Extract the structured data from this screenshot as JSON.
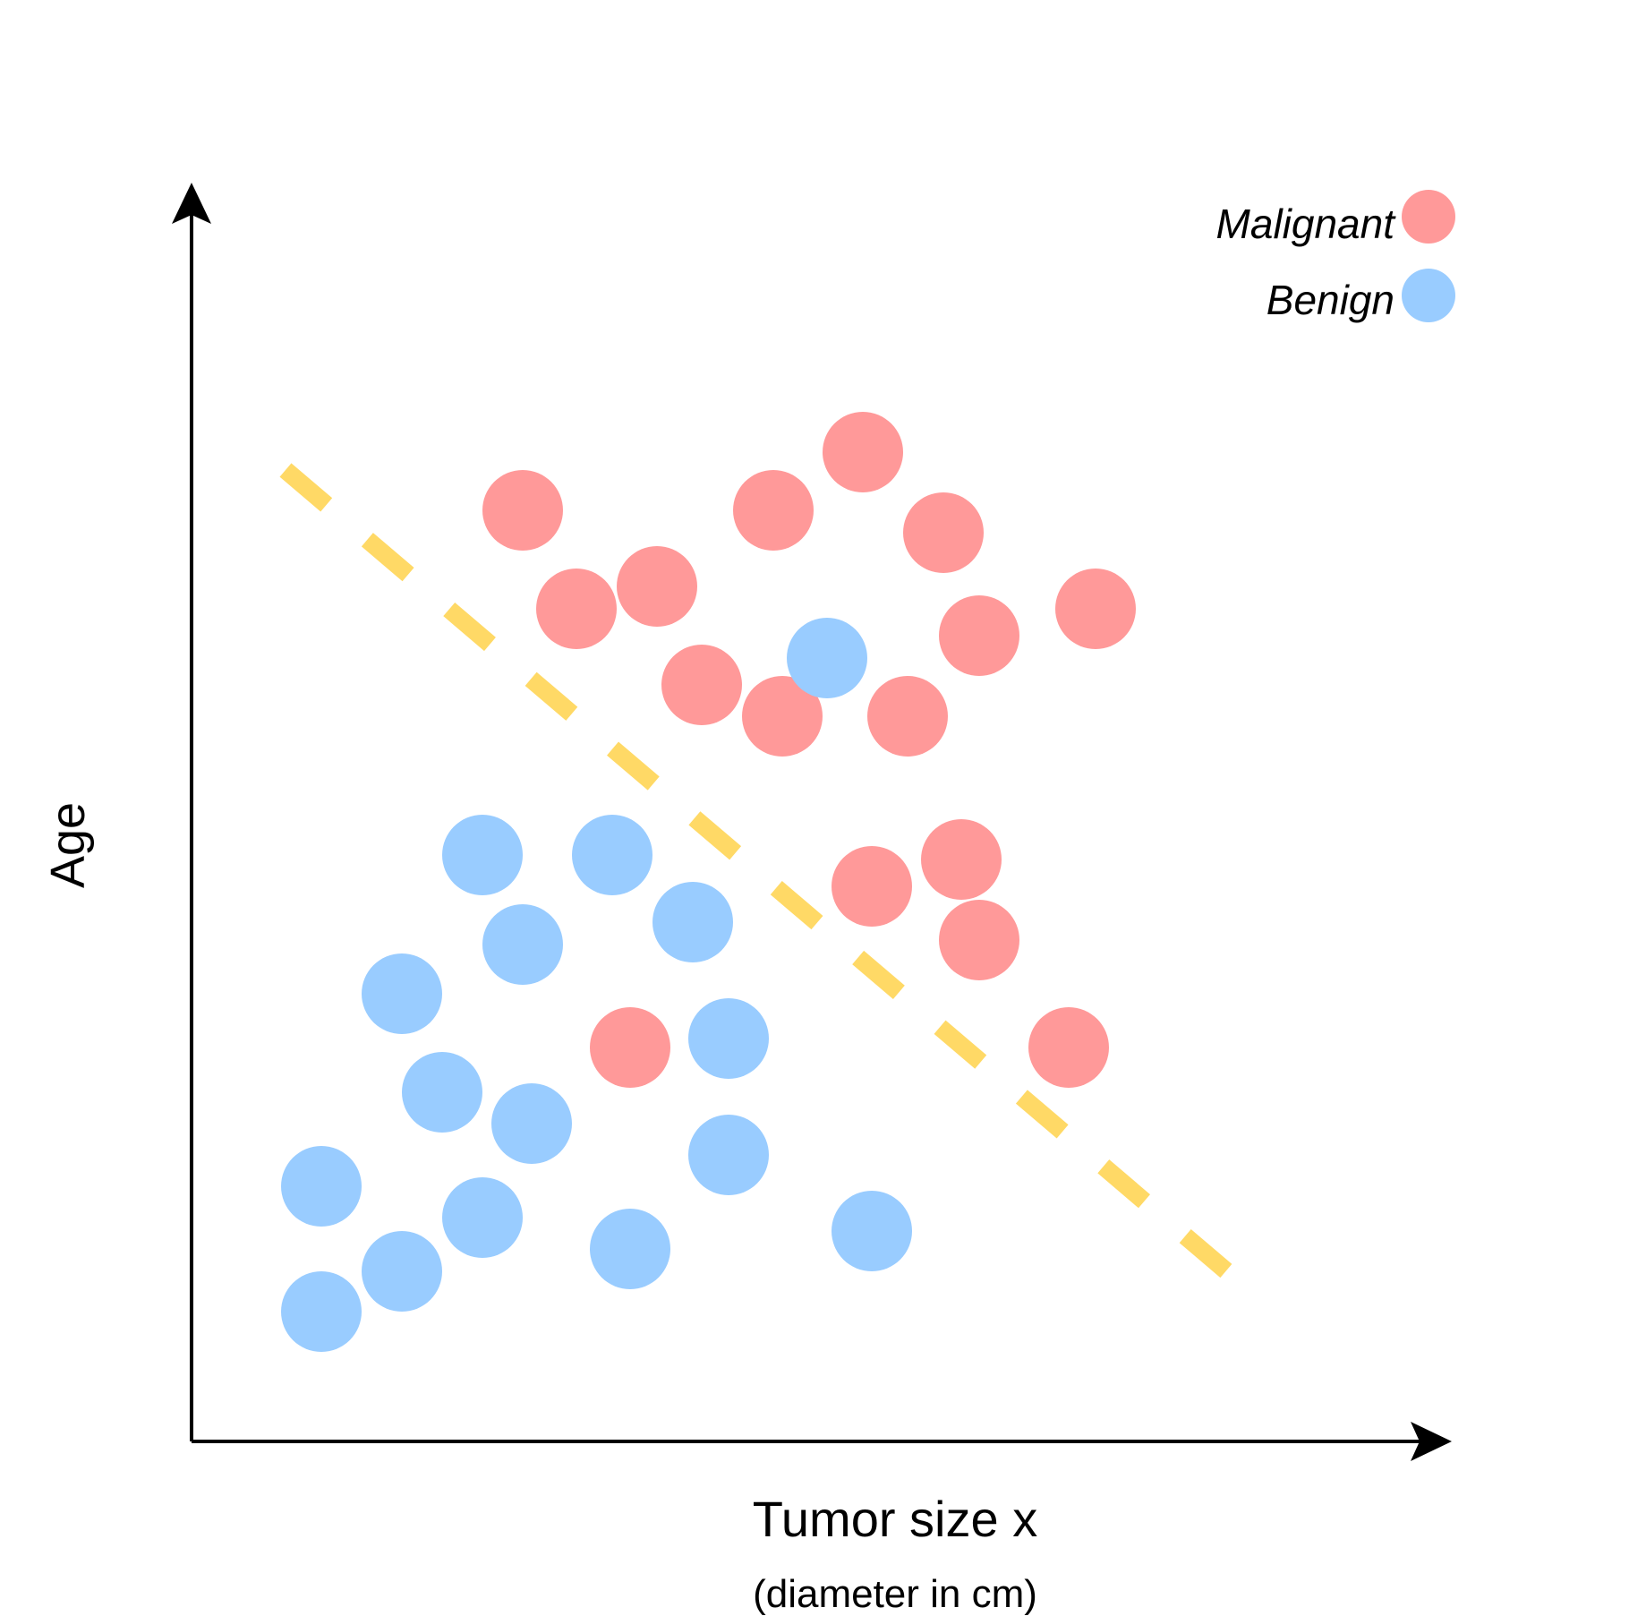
{
  "chart_data": {
    "type": "scatter",
    "xlabel": "Tumor size x",
    "xlabel_sub": "(diameter in cm)",
    "ylabel": "Age",
    "xlim": [
      0,
      14
    ],
    "ylim": [
      0,
      14
    ],
    "grid": false,
    "legend_position": "top-right",
    "series": [
      {
        "name": "Malignant",
        "color": "#ff9999",
        "points": [
          [
            3.7,
            10.4
          ],
          [
            4.3,
            9.3
          ],
          [
            5.2,
            9.55
          ],
          [
            6.5,
            10.4
          ],
          [
            7.5,
            11.05
          ],
          [
            8.4,
            10.15
          ],
          [
            8.8,
            9.0
          ],
          [
            10.1,
            9.3
          ],
          [
            5.7,
            8.45
          ],
          [
            6.6,
            8.1
          ],
          [
            8.0,
            8.1
          ],
          [
            7.6,
            6.2
          ],
          [
            8.6,
            6.5
          ],
          [
            8.8,
            5.6
          ],
          [
            4.9,
            4.4
          ],
          [
            9.8,
            4.4
          ]
        ]
      },
      {
        "name": "Benign",
        "color": "#99ccff",
        "points": [
          [
            7.1,
            8.75
          ],
          [
            3.25,
            6.55
          ],
          [
            4.7,
            6.55
          ],
          [
            3.7,
            5.55
          ],
          [
            5.6,
            5.8
          ],
          [
            2.35,
            5.0
          ],
          [
            6.0,
            4.5
          ],
          [
            2.8,
            3.9
          ],
          [
            3.8,
            3.55
          ],
          [
            6.0,
            3.2
          ],
          [
            1.45,
            2.85
          ],
          [
            3.25,
            2.5
          ],
          [
            2.35,
            1.9
          ],
          [
            4.9,
            2.15
          ],
          [
            7.6,
            2.35
          ],
          [
            1.45,
            1.45
          ]
        ]
      }
    ],
    "decision_boundary": {
      "style": "dashed",
      "color": "#ffd966",
      "from": [
        1.05,
        10.85
      ],
      "to": [
        11.8,
        1.7
      ]
    }
  }
}
